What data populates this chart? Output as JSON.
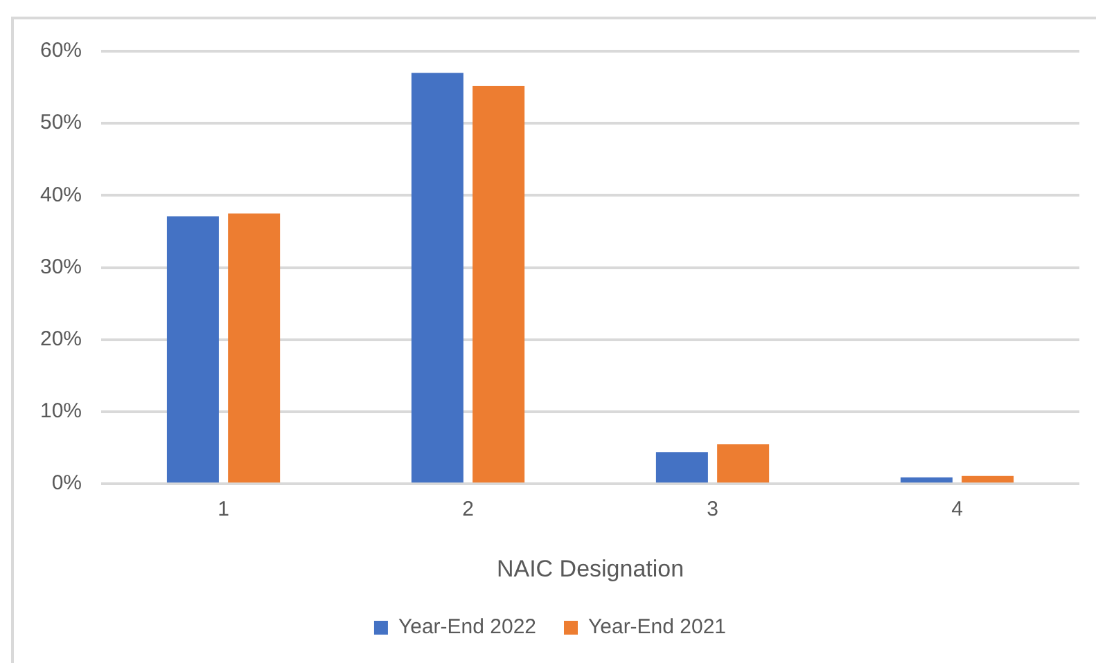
{
  "chart_data": {
    "type": "bar",
    "categories": [
      "1",
      "2",
      "3",
      "4"
    ],
    "xlabel": "NAIC Designation",
    "series": [
      {
        "name": "Year-End 2022",
        "color": "#4472c4",
        "values": [
          37.1,
          57.0,
          4.4,
          0.9
        ]
      },
      {
        "name": "Year-End 2021",
        "color": "#ed7d31",
        "values": [
          37.5,
          55.2,
          5.5,
          1.1
        ]
      }
    ],
    "ylim": [
      0,
      60
    ],
    "yticks": [
      {
        "value": 0,
        "label": "0%"
      },
      {
        "value": 10,
        "label": "10%"
      },
      {
        "value": 20,
        "label": "20%"
      },
      {
        "value": 30,
        "label": "30%"
      },
      {
        "value": 40,
        "label": "40%"
      },
      {
        "value": 50,
        "label": "50%"
      },
      {
        "value": 60,
        "label": "60%"
      }
    ],
    "grid": "y",
    "legend": "bottom"
  }
}
